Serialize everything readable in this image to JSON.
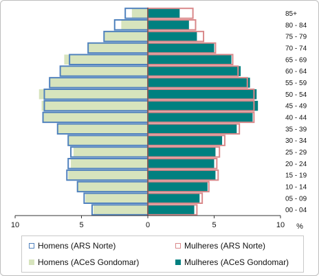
{
  "chart_data": {
    "type": "bar",
    "orientation": "horizontal",
    "subtype": "population-pyramid",
    "categories": [
      "00 - 04",
      "05 - 09",
      "10 - 14",
      "15 - 19",
      "20 - 24",
      "25 - 29",
      "30 - 34",
      "35 - 39",
      "40 - 44",
      "45 - 49",
      "50 - 54",
      "55 - 59",
      "60 - 64",
      "65 - 69",
      "70 - 74",
      "75 - 79",
      "80 - 84",
      "85+"
    ],
    "series": [
      {
        "name": "Homens (ARS Norte)",
        "side": "left",
        "style": "outline",
        "color": "#4f81bd",
        "values": [
          4.2,
          4.8,
          5.3,
          6.1,
          6.0,
          5.8,
          6.0,
          6.8,
          7.9,
          7.8,
          7.8,
          7.4,
          6.6,
          5.9,
          4.5,
          3.3,
          2.5,
          1.7
        ]
      },
      {
        "name": "Mulheres (ARS Norte)",
        "side": "right",
        "style": "outline",
        "color": "#d9888a",
        "values": [
          3.7,
          4.1,
          4.6,
          5.3,
          5.2,
          5.4,
          5.8,
          6.9,
          8.0,
          8.0,
          8.0,
          7.5,
          6.8,
          6.4,
          5.1,
          4.2,
          3.6,
          3.4
        ]
      },
      {
        "name": "Homens (ACeS Gondomar)",
        "side": "left",
        "style": "fill",
        "color": "#d7e4bd",
        "values": [
          4.1,
          4.7,
          5.3,
          6.0,
          5.8,
          5.6,
          6.0,
          6.8,
          7.9,
          8.0,
          8.2,
          7.4,
          6.6,
          6.3,
          4.5,
          3.3,
          2.0,
          1.2
        ]
      },
      {
        "name": "Mulheres (ACeS Gondomar)",
        "side": "right",
        "style": "fill",
        "color": "#008080",
        "values": [
          3.5,
          3.9,
          4.5,
          5.1,
          5.0,
          5.1,
          5.6,
          6.7,
          7.9,
          8.3,
          8.2,
          7.7,
          7.0,
          6.3,
          5.0,
          3.7,
          3.1,
          2.4
        ]
      }
    ],
    "x_ticks": [
      "10",
      "5",
      "0",
      "5",
      "10"
    ],
    "x_unit": "%",
    "xlim": [
      -10,
      10
    ],
    "gridlines": false,
    "legend_position": "bottom"
  }
}
